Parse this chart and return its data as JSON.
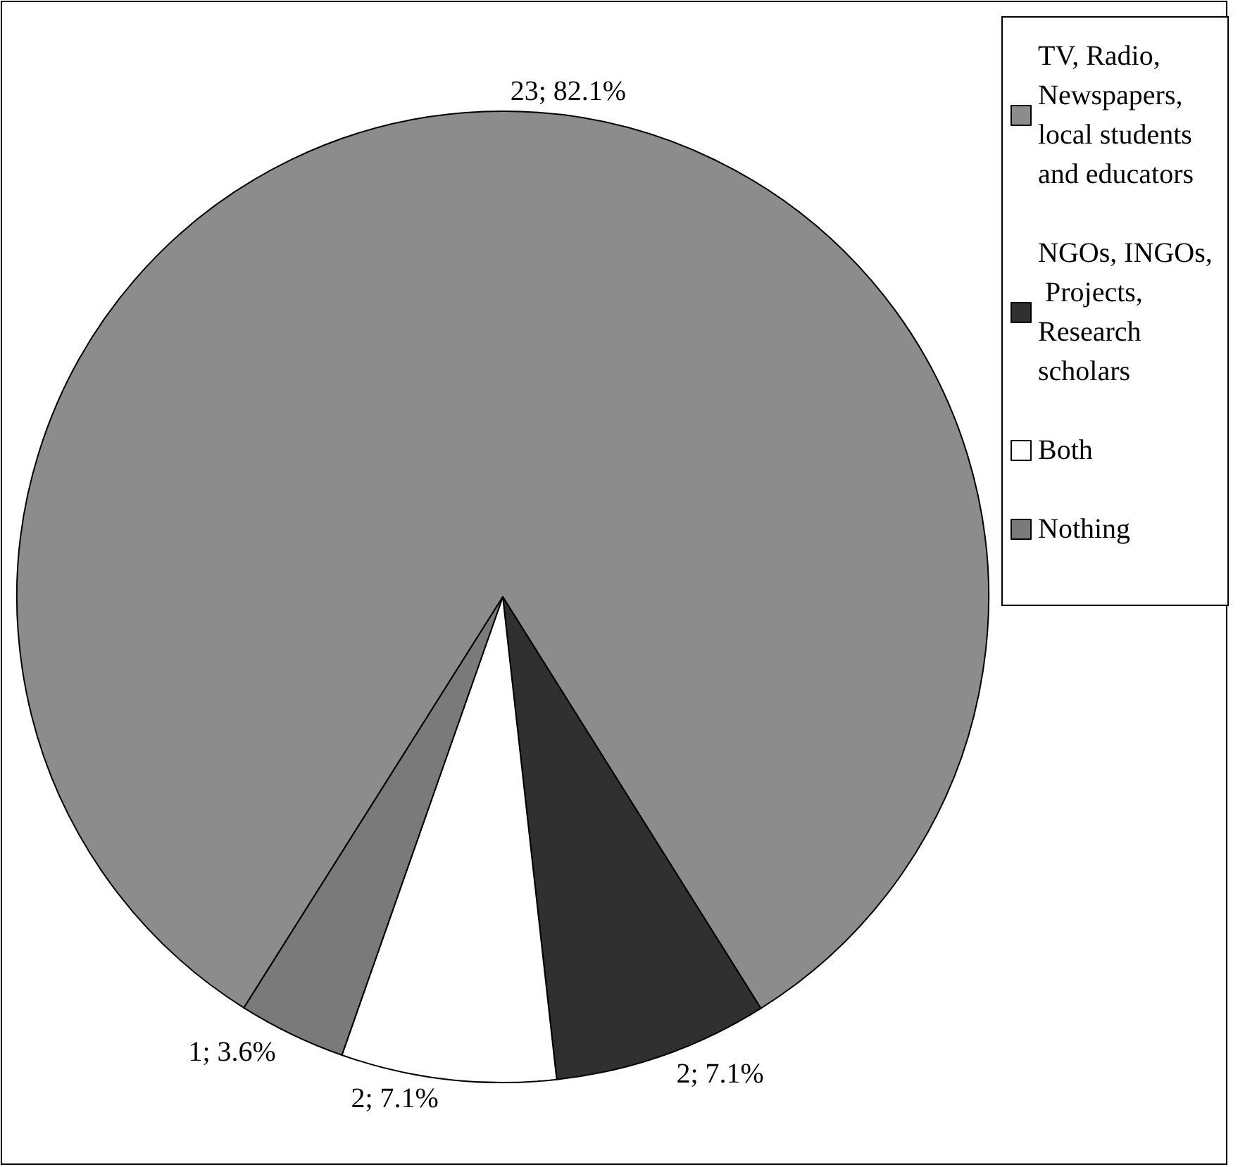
{
  "chart_data": {
    "type": "pie",
    "categories": [
      "TV, Radio, Newspapers, local students and educators",
      "NGOs, INGOs, Projects, Research scholars",
      "Both",
      "Nothing"
    ],
    "values": [
      23,
      2,
      2,
      1
    ],
    "value_labels": [
      "23; 82.1%",
      "2; 7.1%",
      "2; 7.1%",
      "1; 3.6%"
    ],
    "colors": [
      "#8c8c8c",
      "#303030",
      "#ffffff",
      "#7a7a7a"
    ],
    "legend": "right"
  }
}
